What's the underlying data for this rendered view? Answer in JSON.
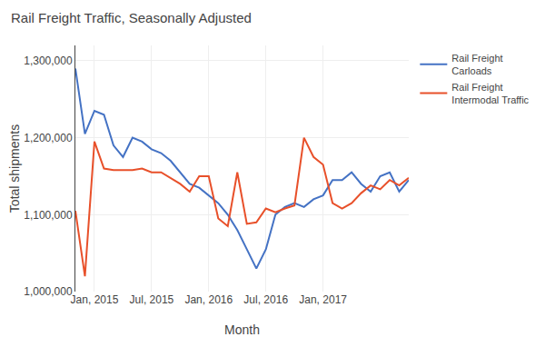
{
  "chart_data": {
    "type": "line",
    "title": "Rail Freight Traffic, Seasonally Adjusted",
    "xlabel": "Month",
    "ylabel": "Total shipments",
    "categories": [
      null,
      null,
      "Jan, 2015",
      null,
      null,
      null,
      null,
      null,
      "Jul, 2015",
      null,
      null,
      null,
      null,
      null,
      "Jan, 2016",
      null,
      null,
      null,
      null,
      null,
      "Jul, 2016",
      null,
      null,
      null,
      null,
      null,
      "Jan, 2017",
      null,
      null,
      null,
      null,
      null,
      null,
      null,
      null,
      null
    ],
    "series": [
      {
        "name": "Rail Freight\nCarloads",
        "color": "#4472C4",
        "values": [
          1290000,
          1205000,
          1235000,
          1230000,
          1190000,
          1175000,
          1200000,
          1195000,
          1185000,
          1180000,
          1170000,
          1155000,
          1140000,
          1135000,
          1125000,
          1115000,
          1100000,
          1080000,
          1055000,
          1030000,
          1055000,
          1100000,
          1110000,
          1115000,
          1110000,
          1120000,
          1125000,
          1145000,
          1145000,
          1155000,
          1140000,
          1130000,
          1150000,
          1155000,
          1130000,
          1145000
        ]
      },
      {
        "name": "Rail Freight\nIntermodal Traffic",
        "color": "#E8502A",
        "values": [
          1105000,
          1020000,
          1195000,
          1160000,
          1158000,
          1158000,
          1158000,
          1160000,
          1155000,
          1155000,
          1148000,
          1140000,
          1130000,
          1150000,
          1150000,
          1095000,
          1085000,
          1155000,
          1088000,
          1090000,
          1108000,
          1103000,
          1108000,
          1112000,
          1200000,
          1175000,
          1165000,
          1115000,
          1108000,
          1115000,
          1128000,
          1138000,
          1133000,
          1145000,
          1138000,
          1148000
        ]
      }
    ],
    "ylim": [
      1000000,
      1320000
    ],
    "yticks": [
      {
        "value": 1000000,
        "label": "1,000,000"
      },
      {
        "value": 1100000,
        "label": "1,100,000"
      },
      {
        "value": 1200000,
        "label": "1,200,000"
      },
      {
        "value": 1300000,
        "label": "1,300,000"
      }
    ],
    "grid": true,
    "legend": "right"
  }
}
